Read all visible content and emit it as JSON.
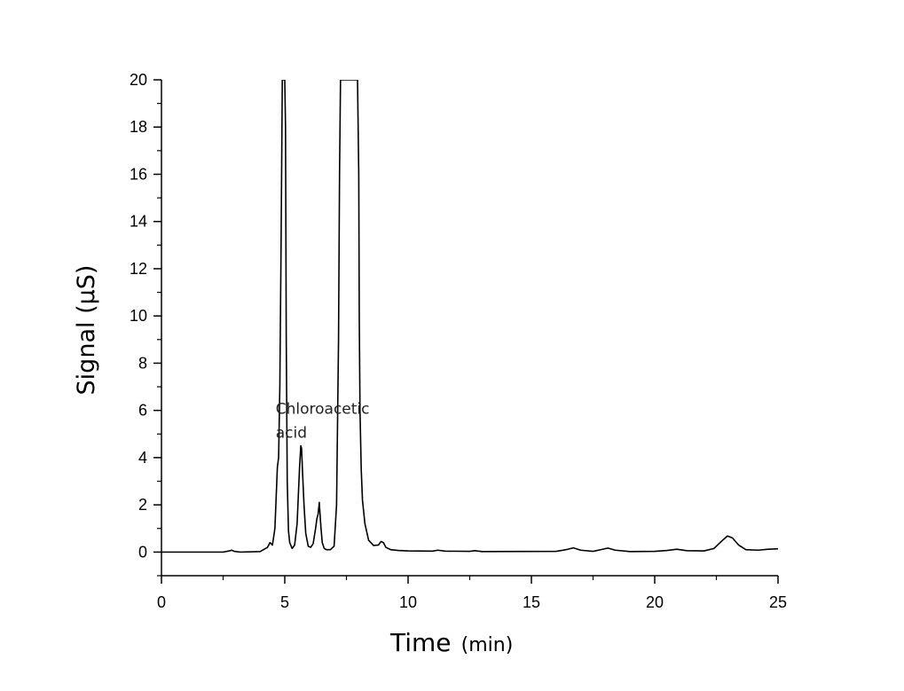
{
  "chart_data": {
    "type": "line",
    "xlabel": {
      "main": "Time",
      "unit": "(min)"
    },
    "ylabel": "Signal (µS)",
    "xlim": [
      0,
      25
    ],
    "ylim": [
      -1,
      20
    ],
    "x_ticks": [
      0,
      5,
      10,
      15,
      20,
      25
    ],
    "y_ticks": [
      0,
      2,
      4,
      6,
      8,
      10,
      12,
      14,
      16,
      18,
      20
    ],
    "grid": false,
    "annotations": [
      {
        "lines": [
          "Chloroacetic",
          "acid"
        ],
        "x": 4.2,
        "y": 6.0
      }
    ],
    "series": [
      {
        "x": [
          0,
          2.5,
          2.75,
          2.85,
          2.95,
          3.2,
          4.0,
          4.3,
          4.4,
          4.5,
          4.6,
          4.7,
          4.75,
          4.8,
          4.85,
          4.9,
          4.95,
          5.0,
          5.03,
          5.06,
          5.1,
          5.15,
          5.2,
          5.3,
          5.4,
          5.5,
          5.55,
          5.6,
          5.65,
          5.68,
          5.72,
          5.78,
          5.85,
          5.95,
          6.05,
          6.15,
          6.25,
          6.3,
          6.35,
          6.4,
          6.43,
          6.47,
          6.52,
          6.6,
          6.7,
          6.85,
          7.0,
          7.1,
          7.18,
          7.22,
          7.26,
          7.3,
          7.95,
          8.0,
          8.02,
          8.05,
          8.1,
          8.15,
          8.25,
          8.4,
          8.6,
          8.8,
          8.9,
          9.0,
          9.1,
          9.3,
          9.6,
          10.0,
          11.0,
          11.2,
          11.5,
          12.5,
          12.7,
          13.0,
          16.0,
          16.4,
          16.7,
          17.0,
          17.5,
          17.8,
          18.1,
          18.4,
          19.0,
          20.0,
          20.5,
          20.9,
          21.3,
          22.0,
          22.4,
          22.7,
          22.95,
          23.15,
          23.4,
          23.7,
          24.2,
          24.6,
          25.0
        ],
        "y": [
          0,
          0,
          0.05,
          0.08,
          0.03,
          0.0,
          0.02,
          0.2,
          0.4,
          0.3,
          1.0,
          3.6,
          4.0,
          7.0,
          13.0,
          20.0,
          20.0,
          20.0,
          18.0,
          9.0,
          3.0,
          0.9,
          0.4,
          0.15,
          0.3,
          1.2,
          2.4,
          3.6,
          4.5,
          4.4,
          3.4,
          2.0,
          0.8,
          0.25,
          0.2,
          0.35,
          1.0,
          1.4,
          1.6,
          2.1,
          1.6,
          1.0,
          0.4,
          0.15,
          0.1,
          0.1,
          0.25,
          2.0,
          9.0,
          16.0,
          20.0,
          20.0,
          20.0,
          16.0,
          10.0,
          6.0,
          3.5,
          2.2,
          1.2,
          0.5,
          0.28,
          0.3,
          0.45,
          0.4,
          0.2,
          0.1,
          0.07,
          0.05,
          0.04,
          0.08,
          0.04,
          0.03,
          0.06,
          0.02,
          0.03,
          0.1,
          0.18,
          0.08,
          0.03,
          0.1,
          0.17,
          0.08,
          0.02,
          0.03,
          0.07,
          0.12,
          0.06,
          0.05,
          0.15,
          0.45,
          0.68,
          0.6,
          0.3,
          0.1,
          0.08,
          0.12,
          0.14
        ]
      }
    ]
  }
}
